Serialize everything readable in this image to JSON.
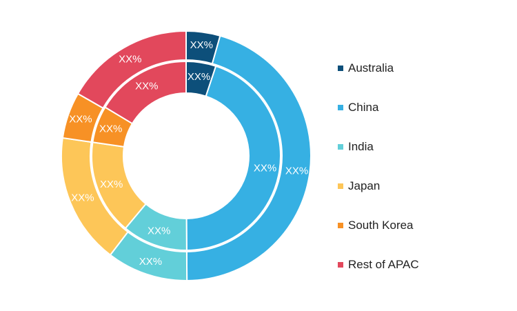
{
  "chart_data": {
    "type": "donut",
    "categories": [
      "Australia",
      "China",
      "India",
      "Japan",
      "South Korea",
      "Rest of APAC"
    ],
    "colors": [
      "#0d4f7a",
      "#36b0e3",
      "#62cfd9",
      "#fdc658",
      "#f79125",
      "#e2485c"
    ],
    "series": [
      {
        "ring": "outer",
        "values": [
          4.4,
          45.5,
          10.5,
          16.9,
          6.0,
          16.7
        ],
        "labels": [
          "XX%",
          "XX%",
          "XX%",
          "XX%",
          "XX%",
          "XX%"
        ]
      },
      {
        "ring": "inner",
        "values": [
          5.1,
          44.8,
          11.2,
          16.2,
          6.3,
          16.4
        ],
        "labels": [
          "XX%",
          "XX%",
          "XX%",
          "XX%",
          "XX%",
          "XX%"
        ]
      }
    ],
    "legend": {
      "position": "right",
      "items": [
        "Australia",
        "China",
        "India",
        "Japan",
        "South Korea",
        "Rest of APAC"
      ]
    }
  }
}
